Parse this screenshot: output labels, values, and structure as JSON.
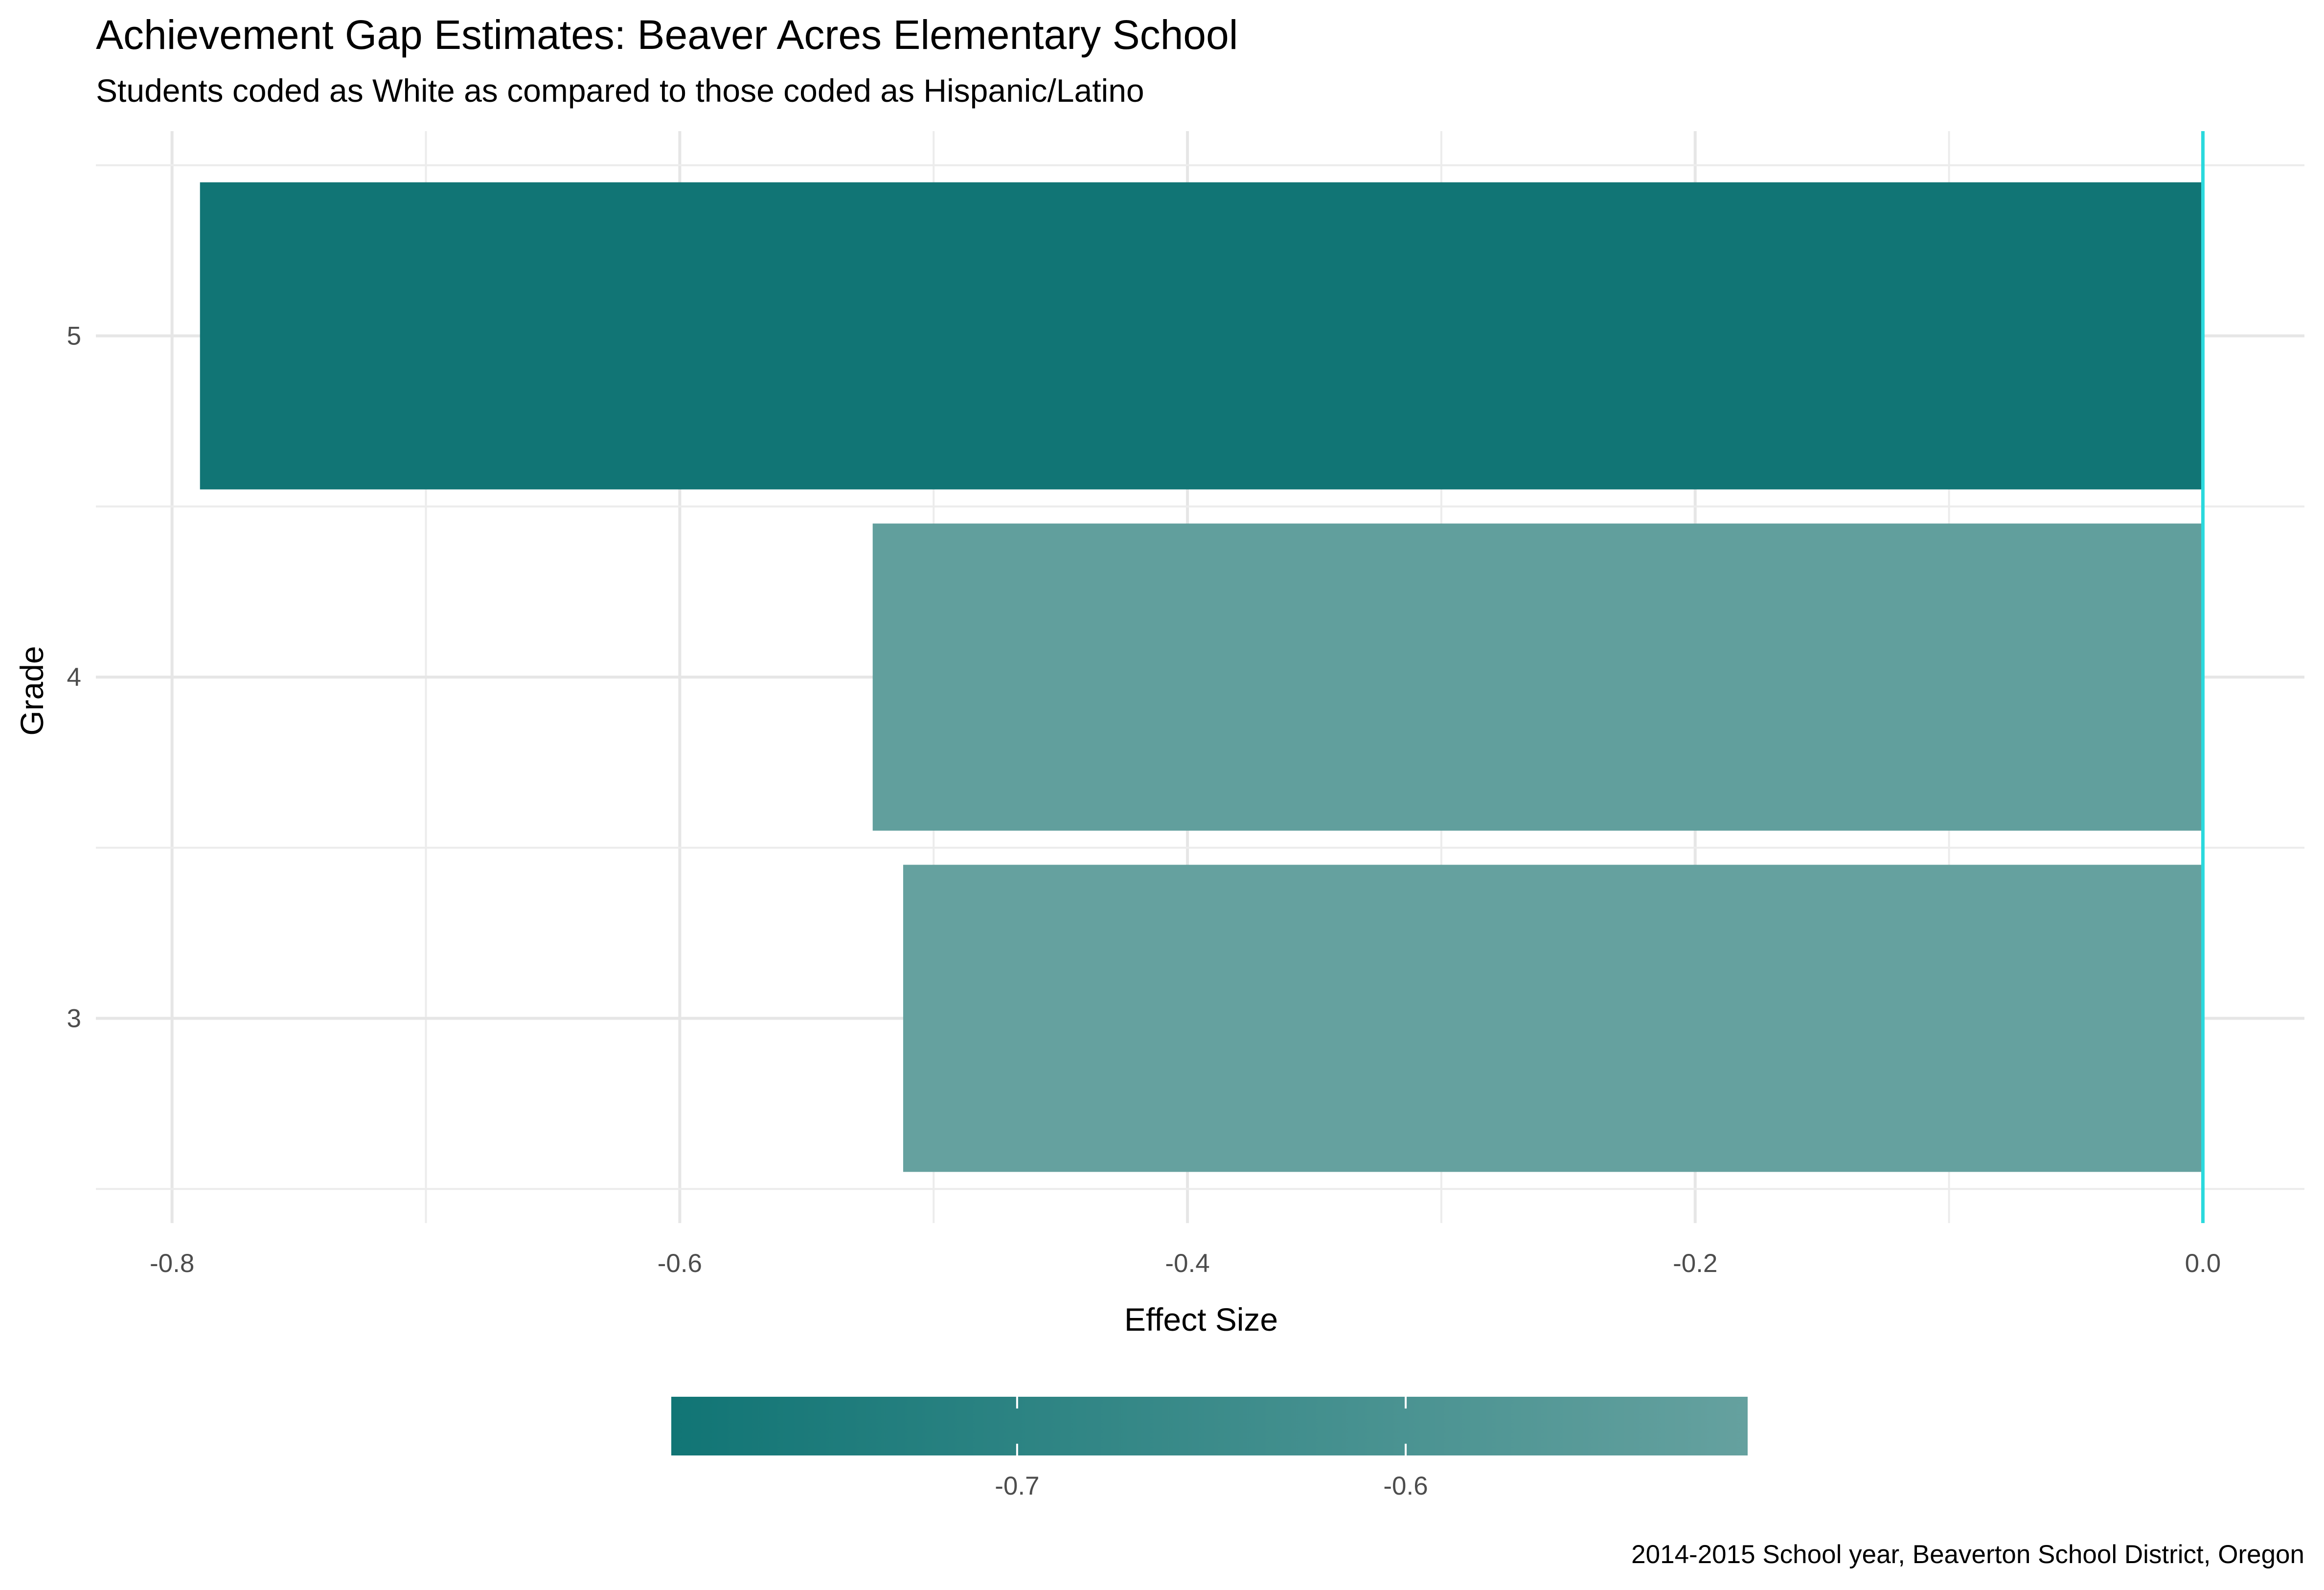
{
  "chart_data": {
    "type": "bar",
    "orientation": "horizontal",
    "title": "Achievement Gap Estimates: Beaver Acres Elementary School",
    "subtitle": "Students coded as White as compared to those coded as Hispanic/Latino",
    "caption": "2014-2015 School year, Beaverton School District, Oregon",
    "xlabel": "Effect Size",
    "ylabel": "Grade",
    "categories": [
      "3",
      "4",
      "5"
    ],
    "values": [
      -0.512,
      -0.524,
      -0.789
    ],
    "xlim": [
      -0.83,
      0.04
    ],
    "x_ticks": [
      -0.8,
      -0.6,
      -0.4,
      -0.2,
      0.0
    ],
    "x_tick_labels": [
      "-0.8",
      "-0.6",
      "-0.4",
      "-0.2",
      "0.0"
    ],
    "reference_line": {
      "x": 0.0,
      "color": "#2bd9dd"
    },
    "grid": true,
    "legend": {
      "type": "colorbar",
      "position": "bottom",
      "range": [
        -0.789,
        -0.512
      ],
      "ticks": [
        -0.7,
        -0.6
      ],
      "tick_labels": [
        "-0.7",
        "-0.6"
      ],
      "color_low": "#117575",
      "color_high": "#65a19f"
    }
  }
}
